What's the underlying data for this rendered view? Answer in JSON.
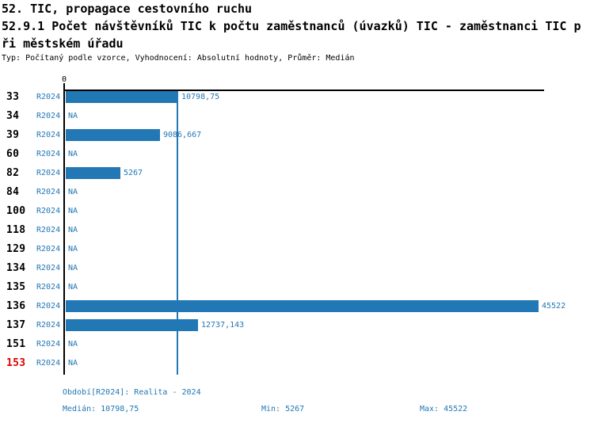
{
  "header": {
    "line1": "52. TIC, propagace cestovního ruchu",
    "line2": "52.9.1 Počet návštěvníků TIC k počtu zaměstnanců (úvazků) TIC - zaměstnanci TIC p",
    "line3": "ři městském úřadu",
    "meta": "Typ: Počítaný podle vzorce, Vyhodnocení: Absolutní hodnoty, Průměr: Medián"
  },
  "chart_data": {
    "type": "bar",
    "orientation": "horizontal",
    "title": "52.9.1 Počet návštěvníků TIC k počtu zaměstnanců (úvazků) TIC - zaměstnanci TIC při městském úřadu",
    "axis_zero_label": "0",
    "categories": [
      "33",
      "34",
      "39",
      "60",
      "82",
      "84",
      "100",
      "118",
      "129",
      "134",
      "135",
      "136",
      "137",
      "151",
      "153"
    ],
    "series": [
      {
        "name": "R2024",
        "values": [
          10798.75,
          null,
          9086.667,
          null,
          5267,
          null,
          null,
          null,
          null,
          null,
          null,
          45522,
          12737.143,
          null,
          null
        ]
      }
    ],
    "value_labels": [
      "10798,75",
      "NA",
      "9086,667",
      "NA",
      "5267",
      "NA",
      "NA",
      "NA",
      "NA",
      "NA",
      "NA",
      "45522",
      "12737,143",
      "NA",
      "NA"
    ],
    "na_label": "NA",
    "highlighted_categories": [
      "153"
    ],
    "xlim": [
      0,
      45522
    ],
    "reference_line": {
      "value": 10798.75,
      "meaning": "median"
    },
    "grid": false,
    "legend": false,
    "summary": {
      "median": 10798.75,
      "min": 5267,
      "max": 45522
    }
  },
  "footer": {
    "period": "Období[R2024]: Realita - 2024",
    "median": "Medián: 10798,75",
    "min": "Min: 5267",
    "max": "Max: 45522"
  },
  "colors": {
    "bar": "#2277b5",
    "blue_text": "#2277b5",
    "median_line": "#2277b5",
    "highlight_row": "#dd0000",
    "axis": "#000000",
    "background": "#ffffff"
  }
}
